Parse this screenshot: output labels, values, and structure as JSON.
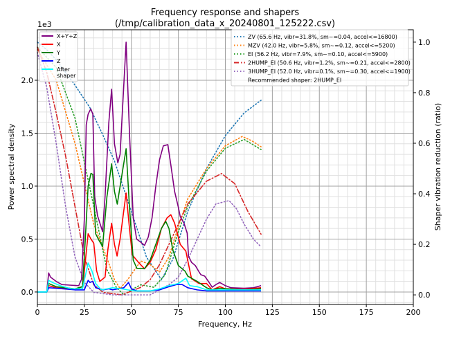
{
  "chart_data": {
    "type": "line",
    "title": "Frequency response and shapers",
    "subtitle": "(/tmp/calibration_data_x_20240801_125222.csv)",
    "xlabel": "Frequency, Hz",
    "ylabel": "Power spectral density",
    "y2label": "Shaper vibration reduction (ratio)",
    "y_offset_label": "1e3",
    "xlim": [
      0,
      200
    ],
    "ylim": [
      -0.118,
      2.477
    ],
    "y2lim": [
      -0.038,
      1.049
    ],
    "xticks": [
      "0",
      "25",
      "50",
      "75",
      "100",
      "125",
      "150",
      "175",
      "200"
    ],
    "xtick_values": [
      0,
      25,
      50,
      75,
      100,
      125,
      150,
      175,
      200
    ],
    "yticks": [
      "0.0",
      "0.5",
      "1.0",
      "1.5",
      "2.0"
    ],
    "ytick_values": [
      0,
      0.5,
      1.0,
      1.5,
      2.0
    ],
    "y2ticks": [
      "0.0",
      "0.2",
      "0.4",
      "0.6",
      "0.8",
      "1.0"
    ],
    "y2tick_values": [
      0,
      0.2,
      0.4,
      0.6,
      0.8,
      1.0
    ],
    "grid": true,
    "psd_series": [
      {
        "name": "X+Y+Z",
        "color": "#800080",
        "points": [
          [
            0,
            0
          ],
          [
            5,
            0
          ],
          [
            6,
            0.18
          ],
          [
            7,
            0.14
          ],
          [
            10,
            0.1
          ],
          [
            13,
            0.07
          ],
          [
            17,
            0.065
          ],
          [
            22,
            0.06
          ],
          [
            23.5,
            0.12
          ],
          [
            25,
            0.7
          ],
          [
            26,
            1.58
          ],
          [
            27,
            1.68
          ],
          [
            28.4,
            1.73
          ],
          [
            29.5,
            1.68
          ],
          [
            30.5,
            0.9
          ],
          [
            32,
            0.72
          ],
          [
            34.7,
            0.57
          ],
          [
            36,
            0.9
          ],
          [
            38,
            1.6
          ],
          [
            39.5,
            1.915
          ],
          [
            41,
            1.4
          ],
          [
            42.8,
            1.22
          ],
          [
            44,
            1.3
          ],
          [
            47.2,
            2.36
          ],
          [
            49,
            1.5
          ],
          [
            51,
            0.7
          ],
          [
            52.8,
            0.5
          ],
          [
            55,
            0.47
          ],
          [
            57,
            0.44
          ],
          [
            59,
            0.52
          ],
          [
            61,
            0.7
          ],
          [
            63,
            1.0
          ],
          [
            65,
            1.25
          ],
          [
            67,
            1.38
          ],
          [
            69.4,
            1.392
          ],
          [
            71,
            1.2
          ],
          [
            73,
            0.95
          ],
          [
            75,
            0.8
          ],
          [
            76,
            0.712
          ],
          [
            78,
            0.65
          ],
          [
            79.7,
            0.556
          ],
          [
            80.4,
            0.34
          ],
          [
            82,
            0.28
          ],
          [
            84,
            0.25
          ],
          [
            86,
            0.19
          ],
          [
            87,
            0.163
          ],
          [
            89,
            0.15
          ],
          [
            91,
            0.1
          ],
          [
            93,
            0.045
          ],
          [
            95,
            0.07
          ],
          [
            97,
            0.09
          ],
          [
            100,
            0.06
          ],
          [
            103,
            0.04
          ],
          [
            110,
            0.035
          ],
          [
            115,
            0.04
          ],
          [
            119,
            0.06
          ]
        ]
      },
      {
        "name": "X",
        "color": "#ff0000",
        "points": [
          [
            0,
            0
          ],
          [
            5,
            0
          ],
          [
            6,
            0.06
          ],
          [
            10,
            0.04
          ],
          [
            20,
            0.03
          ],
          [
            24,
            0.05
          ],
          [
            25,
            0.2
          ],
          [
            27,
            0.55
          ],
          [
            28.5,
            0.5
          ],
          [
            30,
            0.46
          ],
          [
            31.5,
            0.2
          ],
          [
            33.2,
            0.1
          ],
          [
            36,
            0.14
          ],
          [
            37.5,
            0.4
          ],
          [
            39.5,
            0.65
          ],
          [
            41,
            0.45
          ],
          [
            42.4,
            0.34
          ],
          [
            44,
            0.5
          ],
          [
            47.2,
            0.935
          ],
          [
            49,
            0.6
          ],
          [
            50.5,
            0.35
          ],
          [
            54,
            0.275
          ],
          [
            57,
            0.22
          ],
          [
            60,
            0.28
          ],
          [
            63,
            0.4
          ],
          [
            66,
            0.6
          ],
          [
            69,
            0.7
          ],
          [
            71,
            0.73
          ],
          [
            73,
            0.65
          ],
          [
            76,
            0.45
          ],
          [
            79,
            0.385
          ],
          [
            82,
            0.125
          ],
          [
            86,
            0.08
          ],
          [
            90,
            0.08
          ],
          [
            93,
            0.02
          ],
          [
            97,
            0.05
          ],
          [
            100,
            0.03
          ],
          [
            110,
            0.025
          ],
          [
            119,
            0.04
          ]
        ]
      },
      {
        "name": "Y",
        "color": "#008000",
        "points": [
          [
            0,
            0
          ],
          [
            5,
            0
          ],
          [
            6,
            0.08
          ],
          [
            10,
            0.05
          ],
          [
            20,
            0.03
          ],
          [
            24,
            0.05
          ],
          [
            25.5,
            0.5
          ],
          [
            27,
            1.0
          ],
          [
            28.5,
            1.12
          ],
          [
            29.5,
            1.11
          ],
          [
            31,
            0.55
          ],
          [
            33,
            0.48
          ],
          [
            34.7,
            0.43
          ],
          [
            37,
            0.9
          ],
          [
            39.5,
            1.21
          ],
          [
            41,
            0.95
          ],
          [
            42.5,
            0.83
          ],
          [
            47.2,
            1.353
          ],
          [
            49,
            0.8
          ],
          [
            51,
            0.3
          ],
          [
            53,
            0.222
          ],
          [
            57,
            0.22
          ],
          [
            60,
            0.3
          ],
          [
            63,
            0.45
          ],
          [
            66,
            0.6
          ],
          [
            68.3,
            0.667
          ],
          [
            70,
            0.6
          ],
          [
            72,
            0.4
          ],
          [
            75,
            0.25
          ],
          [
            78.6,
            0.196
          ],
          [
            80,
            0.15
          ],
          [
            85,
            0.1
          ],
          [
            90,
            0.04
          ],
          [
            93,
            0.02
          ],
          [
            97,
            0.035
          ],
          [
            100,
            0.03
          ],
          [
            110,
            0.02
          ],
          [
            119,
            0.03
          ]
        ]
      },
      {
        "name": "Z",
        "color": "#0000ff",
        "points": [
          [
            0,
            0
          ],
          [
            5,
            0
          ],
          [
            6,
            0.04
          ],
          [
            10,
            0.035
          ],
          [
            20,
            0.02
          ],
          [
            25,
            0.02
          ],
          [
            27,
            0.11
          ],
          [
            28,
            0.09
          ],
          [
            29.5,
            0.1
          ],
          [
            31,
            0.04
          ],
          [
            35,
            0.02
          ],
          [
            38,
            0.03
          ],
          [
            40,
            0.02
          ],
          [
            43,
            0.03
          ],
          [
            46,
            0.04
          ],
          [
            48.5,
            0.09
          ],
          [
            50,
            0.03
          ],
          [
            53,
            0.01
          ],
          [
            60,
            0.01
          ],
          [
            65,
            0.02
          ],
          [
            70,
            0.05
          ],
          [
            74,
            0.07
          ],
          [
            77,
            0.07
          ],
          [
            80,
            0.04
          ],
          [
            85,
            0.02
          ],
          [
            90,
            0.01
          ],
          [
            119,
            0.01
          ]
        ]
      },
      {
        "name": "After\nshaper",
        "color": "#00ffff",
        "points": [
          [
            0,
            0
          ],
          [
            5,
            0
          ],
          [
            6,
            0.11
          ],
          [
            8,
            0.09
          ],
          [
            12,
            0.06
          ],
          [
            18,
            0.03
          ],
          [
            24,
            0.03
          ],
          [
            27,
            0.274
          ],
          [
            29,
            0.2
          ],
          [
            31,
            0.08
          ],
          [
            34,
            0.02
          ],
          [
            37,
            0.03
          ],
          [
            40,
            0.04
          ],
          [
            45,
            0.03
          ],
          [
            48,
            0.02
          ],
          [
            52,
            0.01
          ],
          [
            60,
            0.01
          ],
          [
            65,
            0.03
          ],
          [
            70,
            0.06
          ],
          [
            75,
            0.08
          ],
          [
            79,
            0.13
          ],
          [
            81,
            0.06
          ],
          [
            85,
            0.05
          ],
          [
            90,
            0.02
          ],
          [
            95,
            0.02
          ],
          [
            119,
            0.02
          ]
        ]
      }
    ],
    "shaper_series": [
      {
        "name": "ZV (65.6 Hz, vibr=31.8%, sm~=0.04, accel<=16800)",
        "color": "#1f77b4",
        "style": "dotted",
        "points": [
          [
            0,
            1.0
          ],
          [
            5,
            0.97
          ],
          [
            10,
            0.93
          ],
          [
            15,
            0.88
          ],
          [
            20,
            0.83
          ],
          [
            28,
            0.74
          ],
          [
            35,
            0.63
          ],
          [
            41,
            0.53
          ],
          [
            50,
            0.33
          ],
          [
            58,
            0.15
          ],
          [
            66,
            0.06
          ],
          [
            72,
            0.14
          ],
          [
            80,
            0.33
          ],
          [
            90,
            0.5
          ],
          [
            100,
            0.63
          ],
          [
            110,
            0.72
          ],
          [
            119,
            0.77
          ]
        ]
      },
      {
        "name": "MZV (42.0 Hz, vibr=5.8%, sm~=0.12, accel<=5200)",
        "color": "#ff7f0e",
        "style": "dotted",
        "points": [
          [
            0,
            0.97
          ],
          [
            10,
            0.85
          ],
          [
            20,
            0.6
          ],
          [
            30,
            0.28
          ],
          [
            37,
            0.146
          ],
          [
            41,
            0.06
          ],
          [
            44,
            0.025
          ],
          [
            48,
            0.06
          ],
          [
            55,
            0.134
          ],
          [
            60,
            0.12
          ],
          [
            65,
            0.09
          ],
          [
            70,
            0.15
          ],
          [
            75,
            0.27
          ],
          [
            80,
            0.38
          ],
          [
            90,
            0.5
          ],
          [
            100,
            0.59
          ],
          [
            109,
            0.627
          ],
          [
            114,
            0.61
          ],
          [
            119,
            0.586
          ]
        ]
      },
      {
        "name": "EI (56.2 Hz, vibr=7.9%, sm~=0.10, accel<=5900)",
        "color": "#2ca02c",
        "style": "dotted",
        "points": [
          [
            0,
            0.98
          ],
          [
            10,
            0.9
          ],
          [
            20,
            0.7
          ],
          [
            30,
            0.35
          ],
          [
            37,
            0.1
          ],
          [
            42,
            0.03
          ],
          [
            46,
            0.0
          ],
          [
            50,
            0.02
          ],
          [
            55,
            0.04
          ],
          [
            62,
            0.03
          ],
          [
            68,
            0.08
          ],
          [
            75,
            0.25
          ],
          [
            80,
            0.35
          ],
          [
            90,
            0.49
          ],
          [
            100,
            0.58
          ],
          [
            110,
            0.615
          ],
          [
            119,
            0.575
          ]
        ]
      },
      {
        "name": "2HUMP_EI (50.6 Hz, vibr=1.2%, sm~=0.21, accel<=2800)",
        "color": "#d62728",
        "style": "dashdot",
        "points": [
          [
            0,
            0.98
          ],
          [
            5,
            0.88
          ],
          [
            10,
            0.72
          ],
          [
            15,
            0.55
          ],
          [
            20,
            0.35
          ],
          [
            25,
            0.15
          ],
          [
            30,
            0.04
          ],
          [
            35,
            0.01
          ],
          [
            45,
            0.0
          ],
          [
            55,
            0.03
          ],
          [
            60,
            0.06
          ],
          [
            65,
            0.12
          ],
          [
            70,
            0.2
          ],
          [
            75,
            0.28
          ],
          [
            80,
            0.36
          ],
          [
            90,
            0.45
          ],
          [
            98,
            0.48
          ],
          [
            105,
            0.44
          ],
          [
            112,
            0.33
          ],
          [
            119,
            0.24
          ]
        ]
      },
      {
        "name": "3HUMP_EI (52.0 Hz, vibr=0.1%, sm~=0.30, accel<=1900)",
        "color": "#9467bd",
        "style": "dotted",
        "points": [
          [
            0,
            0.96
          ],
          [
            5,
            0.82
          ],
          [
            10,
            0.6
          ],
          [
            15,
            0.35
          ],
          [
            20,
            0.15
          ],
          [
            25,
            0.05
          ],
          [
            30,
            0.01
          ],
          [
            40,
            0.0
          ],
          [
            60,
            0.0
          ],
          [
            65,
            0.02
          ],
          [
            70,
            0.04
          ],
          [
            75,
            0.07
          ],
          [
            80,
            0.14
          ],
          [
            85,
            0.22
          ],
          [
            90,
            0.3
          ],
          [
            95,
            0.36
          ],
          [
            102,
            0.373
          ],
          [
            106,
            0.34
          ],
          [
            110,
            0.28
          ],
          [
            115,
            0.22
          ],
          [
            119,
            0.19
          ]
        ]
      }
    ],
    "recommended_label": "Recommended shaper: 2HUMP_EI",
    "legend_left_placement": "top-left",
    "legend_right_placement": "top-right"
  }
}
